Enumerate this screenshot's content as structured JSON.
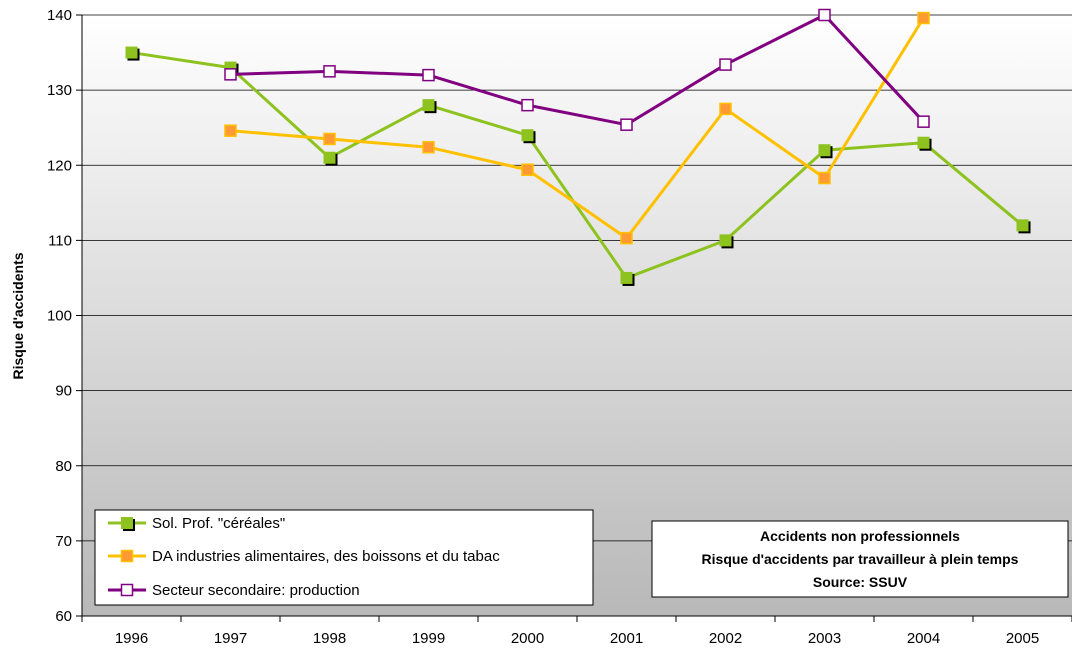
{
  "chart_data": {
    "type": "line",
    "title": "",
    "xlabel": "",
    "ylabel": "Risque d'accidents",
    "ylim": [
      60,
      140
    ],
    "y_ticks": [
      60,
      70,
      80,
      90,
      100,
      110,
      120,
      130,
      140
    ],
    "categories": [
      "1996",
      "1997",
      "1998",
      "1999",
      "2000",
      "2001",
      "2002",
      "2003",
      "2004",
      "2005"
    ],
    "grid": "horizontal",
    "background": "vertical gradient white to grey",
    "legend_position": "bottom-left",
    "series": [
      {
        "name": "Sol. Prof. \"céréales\"",
        "color": "#8dc21f",
        "marker": "square-filled",
        "values": [
          135,
          133,
          121,
          128,
          124,
          105,
          110,
          122,
          123,
          112
        ]
      },
      {
        "name": "DA industries alimentaires, des boissons et du tabac",
        "color": "#ffc000",
        "marker": "square-orange",
        "values": [
          null,
          124.6,
          123.5,
          122.4,
          119.4,
          110.3,
          127.5,
          118.3,
          139.6,
          null
        ]
      },
      {
        "name": "Secteur secondaire: production",
        "color": "#800080",
        "marker": "square-hollow",
        "values": [
          null,
          132.1,
          132.5,
          132,
          128,
          125.4,
          133.4,
          140,
          125.8,
          null
        ]
      }
    ],
    "annotation": {
      "lines": [
        "Accidents non professionnels",
        "Risque d'accidents par travailleur à plein temps",
        "Source: SSUV"
      ]
    }
  }
}
